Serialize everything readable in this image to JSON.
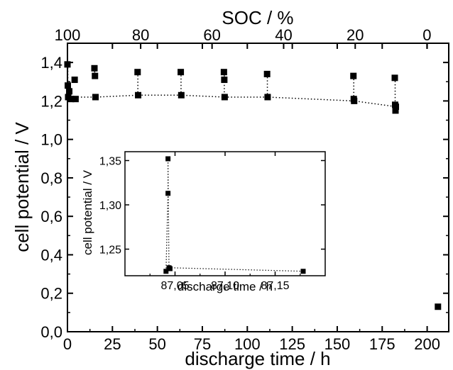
{
  "chart_data": [
    {
      "type": "scatter",
      "title": "",
      "xlabel": "discharge time / h",
      "ylabel": "cell potential / V",
      "x2label": "SOC / %",
      "xlim": [
        0,
        212
      ],
      "ylim": [
        0.0,
        1.5
      ],
      "x_ticks": [
        0,
        25,
        50,
        75,
        100,
        125,
        150,
        175,
        200
      ],
      "x_tick_labels": [
        "0",
        "25",
        "50",
        "75",
        "100",
        "125",
        "150",
        "175",
        "200"
      ],
      "y_ticks": [
        0.0,
        0.2,
        0.4,
        0.6,
        0.8,
        1.0,
        1.2,
        1.4
      ],
      "y_tick_labels": [
        "0,0",
        "0,2",
        "0,4",
        "0,6",
        "0,8",
        "1,0",
        "1,2",
        "1,4"
      ],
      "x2_ticks": [
        100,
        80,
        60,
        40,
        20,
        0
      ],
      "x2_tick_labels": [
        "100",
        "80",
        "60",
        "40",
        "20",
        "0"
      ],
      "x2_tick_positions_in_hours": [
        0,
        40.7,
        80.4,
        120.2,
        160.0,
        199.9
      ],
      "grid": false,
      "legend": "none",
      "line_style": "dotted",
      "series": [
        {
          "points": [
            [
              0.0,
              1.39
            ],
            [
              0.2,
              1.28
            ],
            [
              0.4,
              1.22
            ],
            [
              1.0,
              1.25
            ],
            [
              2.0,
              1.21
            ],
            [
              4.0,
              1.31
            ],
            [
              4.5,
              1.21
            ],
            [
              15.0,
              1.37
            ],
            [
              15.3,
              1.33
            ],
            [
              15.6,
              1.22
            ],
            [
              39.0,
              1.35
            ],
            [
              39.3,
              1.23
            ],
            [
              63.0,
              1.35
            ],
            [
              63.3,
              1.23
            ],
            [
              87.0,
              1.35
            ],
            [
              87.2,
              1.31
            ],
            [
              87.4,
              1.22
            ],
            [
              111.0,
              1.34
            ],
            [
              111.3,
              1.22
            ],
            [
              159.0,
              1.33
            ],
            [
              159.2,
              1.21
            ],
            [
              159.4,
              1.2
            ],
            [
              182.0,
              1.32
            ],
            [
              182.2,
              1.18
            ],
            [
              182.4,
              1.15
            ],
            [
              182.6,
              1.17
            ],
            [
              206.0,
              0.13
            ]
          ],
          "trend": [
            [
              0.4,
              1.22
            ],
            [
              15.6,
              1.22
            ],
            [
              39.3,
              1.23
            ],
            [
              63.3,
              1.23
            ],
            [
              87.4,
              1.22
            ],
            [
              111.3,
              1.22
            ],
            [
              159.4,
              1.2
            ],
            [
              182.6,
              1.17
            ]
          ]
        }
      ]
    },
    {
      "type": "scatter",
      "title": "",
      "xlabel": "discharge time / h",
      "ylabel": "cell potential / V",
      "xlim": [
        87.0,
        87.2
      ],
      "ylim": [
        1.22,
        1.36
      ],
      "x_ticks": [
        87.05,
        87.1,
        87.15
      ],
      "x_tick_labels": [
        "87,05",
        "87,10",
        "87,15"
      ],
      "y_ticks": [
        1.25,
        1.3,
        1.35
      ],
      "y_tick_labels": [
        "1,25",
        "1,30",
        "1,35"
      ],
      "grid": false,
      "legend": "none",
      "line_style": "dotted",
      "series": [
        {
          "points": [
            [
              87.041,
              1.225
            ],
            [
              87.043,
              1.352
            ],
            [
              87.043,
              1.313
            ],
            [
              87.044,
              1.229
            ],
            [
              87.045,
              1.228
            ],
            [
              87.178,
              1.225
            ]
          ],
          "path": [
            [
              87.041,
              1.225
            ],
            [
              87.043,
              1.313
            ],
            [
              87.043,
              1.352
            ],
            [
              87.044,
              1.229
            ],
            [
              87.178,
              1.225
            ]
          ]
        }
      ]
    }
  ]
}
